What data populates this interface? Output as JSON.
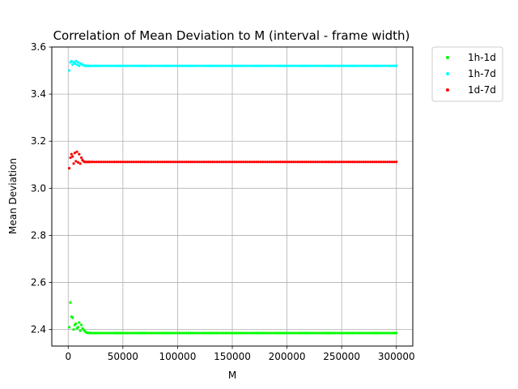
{
  "chart_data": {
    "type": "scatter",
    "title": "Correlation of Mean Deviation to M (interval - frame width)",
    "xlabel": "M",
    "ylabel": "Mean Deviation",
    "xlim": [
      -15000,
      315000
    ],
    "ylim": [
      2.33,
      3.6
    ],
    "xticks": [
      0,
      50000,
      100000,
      150000,
      200000,
      250000,
      300000
    ],
    "xtick_labels": [
      "0",
      "50000",
      "100000",
      "150000",
      "200000",
      "250000",
      "300000"
    ],
    "yticks": [
      2.4,
      2.6,
      2.8,
      3.0,
      3.2,
      3.4,
      3.6
    ],
    "ytick_labels": [
      "2.4",
      "2.6",
      "2.8",
      "3.0",
      "3.2",
      "3.4",
      "3.6"
    ],
    "grid": true,
    "legend_placement": "outside-top-right",
    "x": [
      1000,
      2000,
      3000,
      4000,
      5000,
      6000,
      7000,
      8000,
      9000,
      10000,
      11000,
      12000,
      13000,
      14000,
      15000,
      16000,
      17000,
      18000,
      19000,
      20000,
      22000,
      24000,
      26000,
      28000,
      30000,
      32000,
      34000,
      36000,
      38000,
      40000,
      42000,
      44000,
      46000,
      48000,
      50000,
      52000,
      54000,
      56000,
      58000,
      60000,
      62000,
      64000,
      66000,
      68000,
      70000,
      72000,
      74000,
      76000,
      78000,
      80000,
      82000,
      84000,
      86000,
      88000,
      90000,
      92000,
      94000,
      96000,
      98000,
      100000,
      102000,
      104000,
      106000,
      108000,
      110000,
      112000,
      114000,
      116000,
      118000,
      120000,
      122000,
      124000,
      126000,
      128000,
      130000,
      132000,
      134000,
      136000,
      138000,
      140000,
      142000,
      144000,
      146000,
      148000,
      150000,
      152000,
      154000,
      156000,
      158000,
      160000,
      162000,
      164000,
      166000,
      168000,
      170000,
      172000,
      174000,
      176000,
      178000,
      180000,
      182000,
      184000,
      186000,
      188000,
      190000,
      192000,
      194000,
      196000,
      198000,
      200000,
      202000,
      204000,
      206000,
      208000,
      210000,
      212000,
      214000,
      216000,
      218000,
      220000,
      222000,
      224000,
      226000,
      228000,
      230000,
      232000,
      234000,
      236000,
      238000,
      240000,
      242000,
      244000,
      246000,
      248000,
      250000,
      252000,
      254000,
      256000,
      258000,
      260000,
      262000,
      264000,
      266000,
      268000,
      270000,
      272000,
      274000,
      276000,
      278000,
      280000,
      282000,
      284000,
      286000,
      288000,
      290000,
      292000,
      294000,
      296000,
      298000,
      300000
    ],
    "series": [
      {
        "name": "1h-1d",
        "color": "#00ff00",
        "values": [
          2.41,
          2.515,
          2.455,
          2.45,
          2.4,
          2.42,
          2.425,
          2.405,
          2.41,
          2.43,
          2.395,
          2.42,
          2.405,
          2.4,
          2.395,
          2.39,
          2.387,
          2.386,
          2.386,
          2.385,
          2.385,
          2.385,
          2.385,
          2.385,
          2.385,
          2.385,
          2.385,
          2.385,
          2.385,
          2.385,
          2.385,
          2.385,
          2.385,
          2.385,
          2.385,
          2.385,
          2.385,
          2.385,
          2.385,
          2.385,
          2.385,
          2.385,
          2.385,
          2.385,
          2.385,
          2.385,
          2.385,
          2.385,
          2.385,
          2.385,
          2.385,
          2.385,
          2.385,
          2.385,
          2.385,
          2.385,
          2.385,
          2.385,
          2.385,
          2.385,
          2.385,
          2.385,
          2.385,
          2.385,
          2.385,
          2.385,
          2.385,
          2.385,
          2.385,
          2.385,
          2.385,
          2.385,
          2.385,
          2.385,
          2.385,
          2.385,
          2.385,
          2.385,
          2.385,
          2.385,
          2.385,
          2.385,
          2.385,
          2.385,
          2.385,
          2.385,
          2.385,
          2.385,
          2.385,
          2.385,
          2.385,
          2.385,
          2.385,
          2.385,
          2.385,
          2.385,
          2.385,
          2.385,
          2.385,
          2.385,
          2.385,
          2.385,
          2.385,
          2.385,
          2.385,
          2.385,
          2.385,
          2.385,
          2.385,
          2.385,
          2.385,
          2.385,
          2.385,
          2.385,
          2.385,
          2.385,
          2.385,
          2.385,
          2.385,
          2.385,
          2.385,
          2.385,
          2.385,
          2.385,
          2.385,
          2.385,
          2.385,
          2.385,
          2.385,
          2.385,
          2.385,
          2.385,
          2.385,
          2.385,
          2.385,
          2.385,
          2.385,
          2.385,
          2.385,
          2.385,
          2.385,
          2.385,
          2.385,
          2.385,
          2.385,
          2.385,
          2.385,
          2.385,
          2.385,
          2.385,
          2.385,
          2.385,
          2.385,
          2.385,
          2.385,
          2.385,
          2.385,
          2.385,
          2.385,
          2.385
        ]
      },
      {
        "name": "1h-7d",
        "color": "#00ffff",
        "values": [
          3.5,
          3.535,
          3.54,
          3.525,
          3.535,
          3.53,
          3.54,
          3.525,
          3.535,
          3.52,
          3.53,
          3.528,
          3.525,
          3.522,
          3.521,
          3.52,
          3.52,
          3.52,
          3.52,
          3.52,
          3.52,
          3.52,
          3.52,
          3.52,
          3.52,
          3.52,
          3.52,
          3.52,
          3.52,
          3.52,
          3.52,
          3.52,
          3.52,
          3.52,
          3.52,
          3.52,
          3.52,
          3.52,
          3.52,
          3.52,
          3.52,
          3.52,
          3.52,
          3.52,
          3.52,
          3.52,
          3.52,
          3.52,
          3.52,
          3.52,
          3.52,
          3.52,
          3.52,
          3.52,
          3.52,
          3.52,
          3.52,
          3.52,
          3.52,
          3.52,
          3.52,
          3.52,
          3.52,
          3.52,
          3.52,
          3.52,
          3.52,
          3.52,
          3.52,
          3.52,
          3.52,
          3.52,
          3.52,
          3.52,
          3.52,
          3.52,
          3.52,
          3.52,
          3.52,
          3.52,
          3.52,
          3.52,
          3.52,
          3.52,
          3.52,
          3.52,
          3.52,
          3.52,
          3.52,
          3.52,
          3.52,
          3.52,
          3.52,
          3.52,
          3.52,
          3.52,
          3.52,
          3.52,
          3.52,
          3.52,
          3.52,
          3.52,
          3.52,
          3.52,
          3.52,
          3.52,
          3.52,
          3.52,
          3.52,
          3.52,
          3.52,
          3.52,
          3.52,
          3.52,
          3.52,
          3.52,
          3.52,
          3.52,
          3.52,
          3.52,
          3.52,
          3.52,
          3.52,
          3.52,
          3.52,
          3.52,
          3.52,
          3.52,
          3.52,
          3.52,
          3.52,
          3.52,
          3.52,
          3.52,
          3.52,
          3.52,
          3.52,
          3.52,
          3.52,
          3.52,
          3.52,
          3.52,
          3.52,
          3.52,
          3.52,
          3.52,
          3.52,
          3.52,
          3.52,
          3.52,
          3.52,
          3.52,
          3.52,
          3.52,
          3.52,
          3.52,
          3.52,
          3.52,
          3.52,
          3.52
        ]
      },
      {
        "name": "1d-7d",
        "color": "#ff0000",
        "values": [
          3.085,
          3.13,
          3.145,
          3.135,
          3.105,
          3.15,
          3.115,
          3.155,
          3.11,
          3.145,
          3.105,
          3.13,
          3.12,
          3.115,
          3.112,
          3.112,
          3.112,
          3.112,
          3.112,
          3.112,
          3.112,
          3.112,
          3.112,
          3.112,
          3.112,
          3.112,
          3.112,
          3.112,
          3.112,
          3.112,
          3.112,
          3.112,
          3.112,
          3.112,
          3.112,
          3.112,
          3.112,
          3.112,
          3.112,
          3.112,
          3.112,
          3.112,
          3.112,
          3.112,
          3.112,
          3.112,
          3.112,
          3.112,
          3.112,
          3.112,
          3.112,
          3.112,
          3.112,
          3.112,
          3.112,
          3.112,
          3.112,
          3.112,
          3.112,
          3.112,
          3.112,
          3.112,
          3.112,
          3.112,
          3.112,
          3.112,
          3.112,
          3.112,
          3.112,
          3.112,
          3.112,
          3.112,
          3.112,
          3.112,
          3.112,
          3.112,
          3.112,
          3.112,
          3.112,
          3.112,
          3.112,
          3.112,
          3.112,
          3.112,
          3.112,
          3.112,
          3.112,
          3.112,
          3.112,
          3.112,
          3.112,
          3.112,
          3.112,
          3.112,
          3.112,
          3.112,
          3.112,
          3.112,
          3.112,
          3.112,
          3.112,
          3.112,
          3.112,
          3.112,
          3.112,
          3.112,
          3.112,
          3.112,
          3.112,
          3.112,
          3.112,
          3.112,
          3.112,
          3.112,
          3.112,
          3.112,
          3.112,
          3.112,
          3.112,
          3.112,
          3.112,
          3.112,
          3.112,
          3.112,
          3.112,
          3.112,
          3.112,
          3.112,
          3.112,
          3.112,
          3.112,
          3.112,
          3.112,
          3.112,
          3.112,
          3.112,
          3.112,
          3.112,
          3.112,
          3.112,
          3.112,
          3.112,
          3.112,
          3.112,
          3.112,
          3.112,
          3.112,
          3.112,
          3.112,
          3.112,
          3.112,
          3.112,
          3.112,
          3.112,
          3.112,
          3.112,
          3.112,
          3.112,
          3.112,
          3.112
        ]
      }
    ]
  }
}
